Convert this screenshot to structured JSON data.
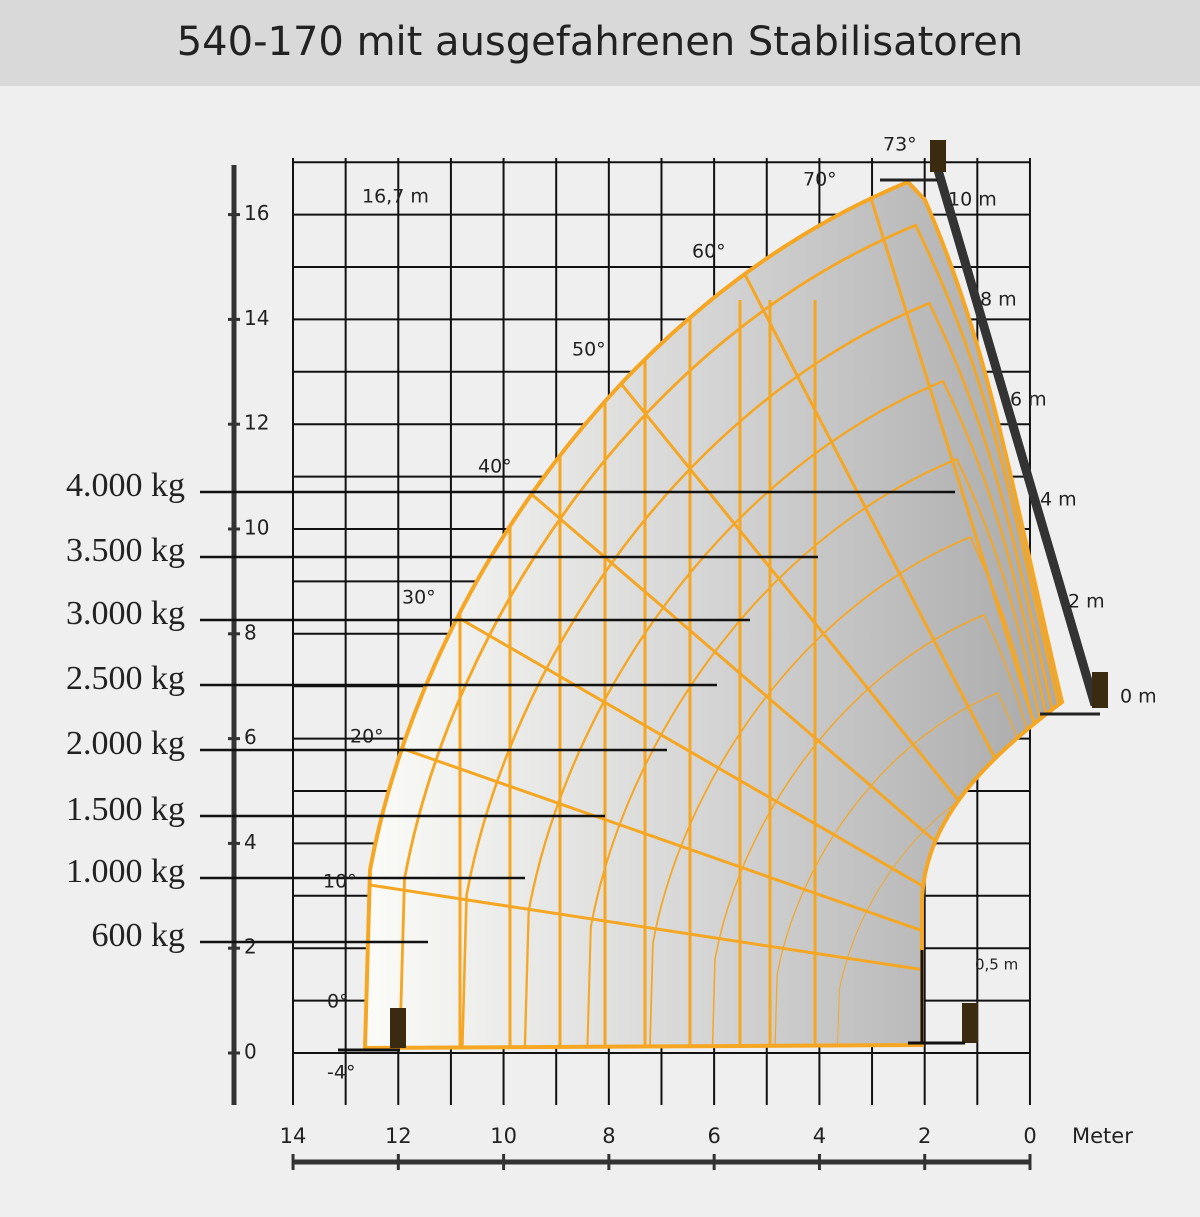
{
  "header": {
    "title": "540-170 mit ausgefahrenen Stabilisatoren"
  },
  "load_labels": [
    "4.000 kg",
    "3.500 kg",
    "3.000 kg",
    "2.500 kg",
    "2.000 kg",
    "1.500 kg",
    "1.000 kg",
    "600 kg"
  ],
  "y_axis": {
    "ticks": [
      0,
      2,
      4,
      6,
      8,
      10,
      12,
      14,
      16
    ]
  },
  "x_axis": {
    "ticks": [
      14,
      12,
      10,
      8,
      6,
      4,
      2,
      0
    ],
    "label": "Meter"
  },
  "angles": [
    "73°",
    "70°",
    "60°",
    "50°",
    "40°",
    "30°",
    "20°",
    "10°",
    "0°",
    "-4°"
  ],
  "extensions": [
    "10 m",
    "8 m",
    "6 m",
    "4 m",
    "2 m",
    "0 m",
    "0,5 m"
  ],
  "max_height_label": "16,7 m"
}
